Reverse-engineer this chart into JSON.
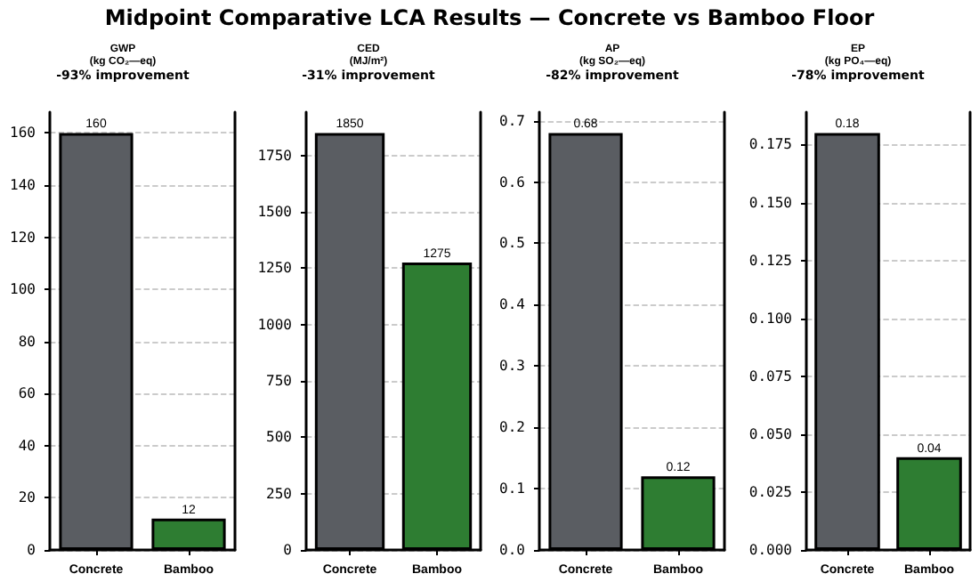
{
  "chart_data": [
    {
      "type": "other",
      "title": "Midpoint Comparative LCA Results — Concrete vs Bamboo Floor"
    },
    {
      "type": "bar",
      "title": "GWP",
      "subtitle": "(kg CO₂—eq)",
      "annotations": [
        "-93% improvement"
      ],
      "categories": [
        "Concrete",
        "Bamboo"
      ],
      "values": [
        160,
        12
      ],
      "colors": [
        "#5a5d62",
        "#2e7d32"
      ],
      "ylim": [
        0,
        168
      ],
      "yticks": [
        0,
        20,
        40,
        60,
        80,
        100,
        120,
        140,
        160
      ],
      "grid": "y",
      "data_labels": true
    },
    {
      "type": "bar",
      "title": "CED",
      "subtitle": "(MJ/m²)",
      "annotations": [
        "-31% improvement"
      ],
      "categories": [
        "Concrete",
        "Bamboo"
      ],
      "values": [
        1850,
        1275
      ],
      "colors": [
        "#5a5d62",
        "#2e7d32"
      ],
      "ylim": [
        0,
        1942.5
      ],
      "yticks": [
        0,
        250,
        500,
        750,
        1000,
        1250,
        1500,
        1750
      ],
      "grid": "y",
      "data_labels": true
    },
    {
      "type": "bar",
      "title": "AP",
      "subtitle": "(kg SO₂—eq)",
      "annotations": [
        "-82% improvement"
      ],
      "categories": [
        "Concrete",
        "Bamboo"
      ],
      "values": [
        0.68,
        0.12
      ],
      "colors": [
        "#5a5d62",
        "#2e7d32"
      ],
      "ylim": [
        0,
        0.714
      ],
      "yticks": [
        {
          "value": 0,
          "label": "0.0"
        },
        0.1,
        0.2,
        0.3,
        0.4,
        0.5,
        0.6,
        0.7
      ],
      "grid": "y",
      "data_labels": true
    },
    {
      "type": "bar",
      "title": "EP",
      "subtitle": "(kg PO₄—eq)",
      "annotations": [
        "-78% improvement"
      ],
      "categories": [
        "Concrete",
        "Bamboo"
      ],
      "values": [
        0.18,
        0.04
      ],
      "colors": [
        "#5a5d62",
        "#2e7d32"
      ],
      "ylim": [
        0,
        0.189
      ],
      "yticks": [
        {
          "value": 0,
          "label": "0.000"
        },
        {
          "value": 0.025,
          "label": "0.025"
        },
        {
          "value": 0.05,
          "label": "0.050"
        },
        {
          "value": 0.075,
          "label": "0.075"
        },
        {
          "value": 0.1,
          "label": "0.100"
        },
        {
          "value": 0.125,
          "label": "0.125"
        },
        {
          "value": 0.15,
          "label": "0.150"
        },
        {
          "value": 0.175,
          "label": "0.175"
        }
      ],
      "grid": "y",
      "data_labels": true
    }
  ]
}
